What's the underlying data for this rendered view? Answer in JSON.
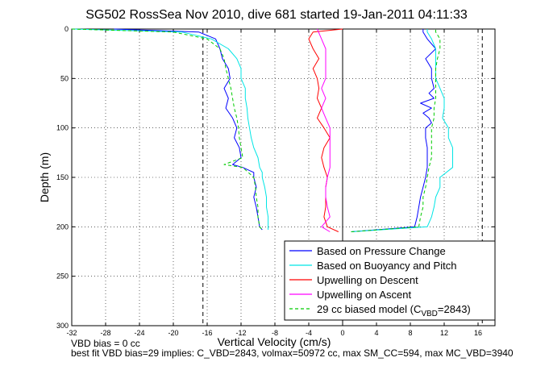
{
  "chart_data": {
    "type": "line",
    "title": "SG502 RossSea Nov 2010, dive 681 started 19-Jan-2011 04:11:33",
    "xlabel": "Vertical Velocity (cm/s)",
    "ylabel": "Depth (m)",
    "xlim": [
      -32,
      18
    ],
    "ylim": [
      0,
      300
    ],
    "y_reversed": true,
    "grid": true,
    "xticks": [
      -32,
      -28,
      -24,
      -20,
      -16,
      -12,
      -8,
      -4,
      0,
      4,
      8,
      12,
      16
    ],
    "yticks": [
      0,
      50,
      100,
      150,
      200,
      250,
      300
    ],
    "legend_position": "lower-right",
    "vertical_lines": {
      "dashed": [
        -16.5,
        16.5
      ],
      "solid": [
        0
      ]
    },
    "series": [
      {
        "name": "Based on Pressure Change",
        "color": "#0000ff",
        "descent": {
          "depth": [
            0,
            3,
            10,
            20,
            30,
            40,
            50,
            60,
            70,
            80,
            90,
            100,
            110,
            120,
            130,
            137,
            140,
            145,
            150,
            160,
            170,
            180,
            190,
            200,
            203
          ],
          "velocity": [
            -27,
            -17,
            -15,
            -14.5,
            -14.2,
            -13.5,
            -13.3,
            -14,
            -13.5,
            -13.8,
            -13,
            -12.5,
            -12.8,
            -12.2,
            -12,
            -13,
            -11.8,
            -10.5,
            -10.5,
            -10.2,
            -10.5,
            -10.2,
            -10,
            -9.8,
            -9.5
          ]
        },
        "ascent": {
          "depth": [
            205,
            200,
            190,
            180,
            170,
            160,
            150,
            140,
            130,
            120,
            110,
            100,
            95,
            90,
            85,
            80,
            75,
            70,
            65,
            60,
            50,
            40,
            30,
            20,
            10,
            3,
            0
          ],
          "velocity": [
            1,
            8.5,
            8.8,
            9,
            9.2,
            9.5,
            9.8,
            10,
            10,
            10,
            9.8,
            9.8,
            10.5,
            10.2,
            9.5,
            10.5,
            9.2,
            10.8,
            10.2,
            10.8,
            10.5,
            10.5,
            9.8,
            11,
            10,
            9.5,
            9.5
          ]
        }
      },
      {
        "name": "Based on Buoyancy and Pitch",
        "color": "#00e5e5",
        "descent": {
          "depth": [
            0,
            3,
            10,
            20,
            30,
            40,
            50,
            60,
            70,
            80,
            90,
            100,
            110,
            120,
            130,
            140,
            145,
            150,
            160,
            170,
            180,
            190,
            200,
            203
          ],
          "velocity": [
            -32,
            -19,
            -15.5,
            -13.5,
            -12.5,
            -12,
            -12,
            -11.5,
            -11.5,
            -11.3,
            -11.2,
            -11,
            -10.8,
            -10.5,
            -10,
            -9.8,
            -9.5,
            -9.5,
            -9.2,
            -9,
            -9,
            -8.8,
            -8.8,
            -8.8
          ]
        },
        "ascent": {
          "depth": [
            205,
            200,
            190,
            180,
            170,
            160,
            150,
            140,
            130,
            120,
            110,
            100,
            90,
            80,
            70,
            60,
            50,
            40,
            30,
            20,
            10,
            3,
            0
          ],
          "velocity": [
            1,
            10,
            10.5,
            10.8,
            11,
            11.5,
            11.5,
            13,
            13,
            13,
            12.5,
            12.5,
            11.8,
            12,
            12,
            11.5,
            11,
            11,
            11,
            11,
            10.5,
            10,
            10
          ]
        }
      },
      {
        "name": "Upwelling on Descent",
        "color": "#ff0000",
        "depth": [
          0,
          3,
          10,
          20,
          30,
          40,
          50,
          60,
          70,
          80,
          90,
          100,
          110,
          120,
          130,
          140,
          150,
          160,
          170,
          180,
          190,
          200,
          205
        ],
        "velocity": [
          0,
          -3.5,
          -4,
          -3.5,
          -2.8,
          -3.5,
          -3,
          -2.8,
          -3,
          -2.5,
          -3,
          -2.2,
          -1.5,
          -2.2,
          -2.5,
          -2.2,
          -1.8,
          -2,
          -2,
          -2,
          -2.2,
          -1.8,
          -0.5
        ]
      },
      {
        "name": "Upwelling on Ascent",
        "color": "#ff00ff",
        "depth": [
          205,
          200,
          190,
          180,
          170,
          160,
          150,
          140,
          130,
          120,
          110,
          100,
          90,
          80,
          70,
          60,
          50,
          40,
          30,
          20,
          10,
          0
        ],
        "velocity": [
          -1.5,
          -2.5,
          -1.5,
          -1.8,
          -2,
          -2,
          -1.8,
          -1.5,
          -1.5,
          -1.5,
          -1.5,
          -1.5,
          -2,
          -2.5,
          -2,
          -2.5,
          -2,
          -2,
          -2,
          -2,
          -2.5,
          -3
        ]
      },
      {
        "name": "29 cc biased model (C_VBD=2843)",
        "color": "#00cc00",
        "dashed": true,
        "descent": {
          "depth": [
            0,
            3,
            10,
            20,
            30,
            40,
            50,
            60,
            70,
            80,
            90,
            100,
            110,
            120,
            130,
            137,
            140,
            150,
            160,
            170,
            180,
            190,
            200,
            203
          ],
          "velocity": [
            -32,
            -20,
            -16,
            -14.5,
            -14,
            -13.8,
            -13.5,
            -13.2,
            -13,
            -12.8,
            -12.5,
            -12.3,
            -12.2,
            -12,
            -11.8,
            -14,
            -11.8,
            -10.5,
            -10.3,
            -10.2,
            -10,
            -10,
            -9.8,
            -9.5
          ]
        },
        "ascent": {
          "depth": [
            205,
            200,
            190,
            180,
            170,
            160,
            150,
            140,
            130,
            120,
            110,
            100,
            90,
            80,
            70,
            60,
            50,
            40,
            30,
            20,
            10,
            3,
            0
          ],
          "velocity": [
            1,
            9,
            9.2,
            9.5,
            9.5,
            9.8,
            10,
            10.2,
            10.5,
            10.5,
            10.5,
            10.5,
            10.8,
            10.8,
            11,
            11,
            11,
            11,
            11.2,
            11.5,
            11.5,
            11,
            11
          ]
        }
      }
    ],
    "legend": [
      {
        "label": "Based on Pressure Change",
        "color": "#0000ff",
        "dashed": false
      },
      {
        "label": "Based on Buoyancy and Pitch",
        "color": "#00e5e5",
        "dashed": false
      },
      {
        "label": "Upwelling on Descent",
        "color": "#ff0000",
        "dashed": false
      },
      {
        "label": "Upwelling on Ascent",
        "color": "#ff00ff",
        "dashed": false
      },
      {
        "label": "29 cc biased model (C",
        "sub": "VBD",
        "tail": "=2843)",
        "color": "#00cc00",
        "dashed": true
      }
    ],
    "footnotes": [
      "VBD bias = 0 cc",
      "best fit VBD bias=29 implies: C_VBD=2843, volmax=50972 cc, max SM_CC=594, max MC_VBD=3940"
    ]
  }
}
